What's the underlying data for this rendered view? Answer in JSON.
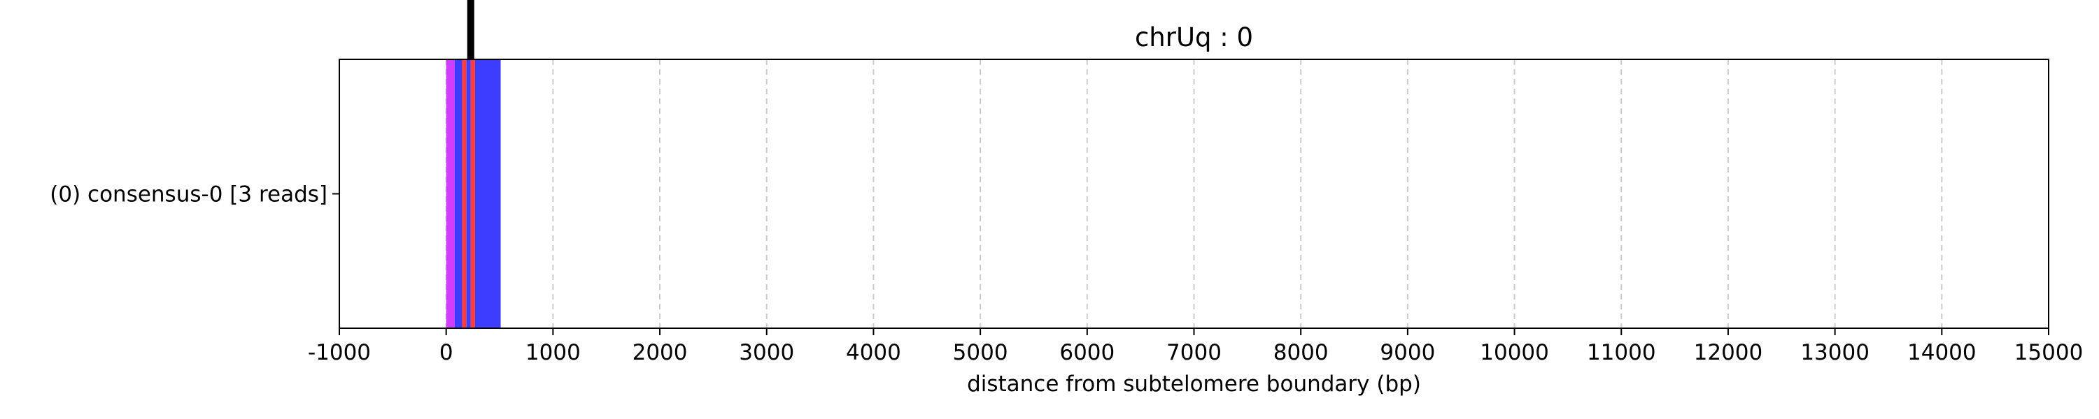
{
  "chart_data": {
    "type": "bar",
    "title": "chrUq : 0",
    "xlabel": "distance from subtelomere boundary (bp)",
    "ylabel": "",
    "xlim": [
      -1000,
      15000
    ],
    "x_ticks": [
      -1000,
      0,
      1000,
      2000,
      3000,
      4000,
      5000,
      6000,
      7000,
      8000,
      9000,
      10000,
      11000,
      12000,
      13000,
      14000,
      15000
    ],
    "categories": [
      "(0) consensus-0 [3 reads]"
    ],
    "grid": {
      "x": true,
      "style": "dashed",
      "color": "#cccccc"
    },
    "segments": [
      {
        "start": 0,
        "end": 80,
        "color": "#cc33ff"
      },
      {
        "start": 80,
        "end": 150,
        "color": "#3333ff"
      },
      {
        "start": 150,
        "end": 190,
        "color": "#ff3333"
      },
      {
        "start": 190,
        "end": 230,
        "color": "#3333ff"
      },
      {
        "start": 230,
        "end": 270,
        "color": "#ff3333"
      },
      {
        "start": 270,
        "end": 510,
        "color": "#3333ff"
      }
    ],
    "boundary_marker": {
      "x": 230,
      "color": "#000000"
    }
  }
}
